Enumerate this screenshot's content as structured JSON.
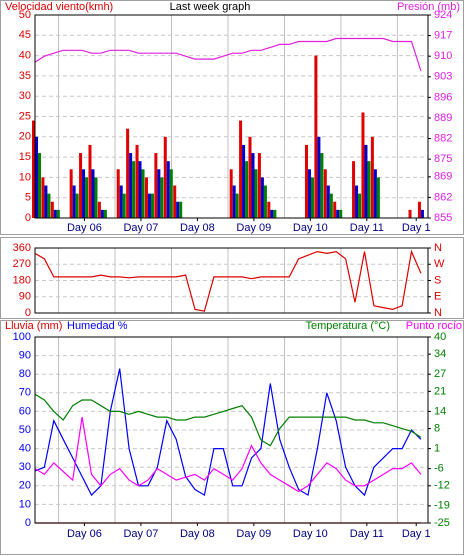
{
  "chart_data": [
    {
      "type": "bar",
      "title": "Last week graph",
      "x": [
        0,
        4,
        8,
        12,
        16,
        20,
        24,
        28,
        32,
        36,
        40,
        44,
        48,
        52,
        56,
        60,
        64,
        68,
        72,
        76,
        80,
        84,
        88,
        92,
        96,
        100,
        104,
        108,
        112,
        116,
        120,
        124,
        128,
        132,
        136,
        140,
        144,
        148,
        152,
        156,
        160,
        164
      ],
      "xlim": [
        0,
        167
      ],
      "xticks": [
        {
          "value": 21,
          "label": "Day 06"
        },
        {
          "value": 45,
          "label": "Day 07"
        },
        {
          "value": 69,
          "label": "Day 08"
        },
        {
          "value": 93,
          "label": "Day 09"
        },
        {
          "value": 117,
          "label": "Day 10"
        },
        {
          "value": 141,
          "label": "Day 11"
        },
        {
          "value": 162,
          "label": "Day 1"
        }
      ],
      "xgrid": [
        10,
        34,
        58,
        82,
        106,
        130,
        154
      ],
      "ylim": [
        0,
        50
      ],
      "yticks": [
        0,
        5,
        10,
        15,
        20,
        25,
        30,
        35,
        40,
        45,
        50
      ],
      "y2lim": [
        855,
        924
      ],
      "y2ticks": [
        855,
        862,
        869,
        875,
        882,
        889,
        896,
        903,
        910,
        917,
        924
      ],
      "grid": true,
      "series": [
        {
          "name": "Velocidad viento(kmh)",
          "color": "#e00000",
          "values": [
            24,
            10,
            4,
            0,
            12,
            16,
            18,
            4,
            0,
            12,
            22,
            18,
            10,
            16,
            20,
            8,
            0,
            0,
            0,
            0,
            0,
            12,
            24,
            20,
            16,
            4,
            0,
            0,
            0,
            18,
            40,
            12,
            4,
            0,
            14,
            26,
            20,
            0,
            0,
            0,
            2,
            4
          ]
        },
        {
          "color": "#0000cc",
          "values": [
            20,
            8,
            2,
            0,
            8,
            12,
            12,
            2,
            0,
            8,
            16,
            14,
            6,
            12,
            14,
            4,
            0,
            0,
            0,
            0,
            0,
            8,
            18,
            16,
            10,
            2,
            0,
            0,
            0,
            12,
            20,
            8,
            2,
            0,
            8,
            18,
            12,
            0,
            0,
            0,
            0,
            2
          ]
        },
        {
          "color": "#008000",
          "values": [
            16,
            6,
            2,
            0,
            6,
            10,
            10,
            2,
            0,
            6,
            14,
            12,
            6,
            10,
            12,
            4,
            0,
            0,
            0,
            0,
            0,
            6,
            14,
            12,
            8,
            2,
            0,
            0,
            0,
            10,
            16,
            6,
            2,
            0,
            6,
            14,
            10,
            0,
            0,
            0,
            0,
            0
          ]
        },
        {
          "name": "Presión (mb)",
          "type": "line",
          "axis": "y2",
          "color": "#e020e0",
          "values": [
            908,
            910,
            911,
            912,
            912,
            912,
            911,
            911,
            912,
            912,
            912,
            911,
            911,
            911,
            911,
            911,
            910,
            909,
            909,
            909,
            910,
            911,
            911,
            912,
            912,
            913,
            914,
            914,
            915,
            915,
            915,
            915,
            916,
            916,
            916,
            916,
            916,
            916,
            915,
            915,
            915,
            905
          ]
        }
      ]
    },
    {
      "type": "line",
      "x": [
        0,
        4,
        8,
        12,
        16,
        20,
        24,
        28,
        32,
        36,
        40,
        44,
        48,
        52,
        56,
        60,
        64,
        68,
        72,
        76,
        80,
        84,
        88,
        92,
        96,
        100,
        104,
        108,
        112,
        116,
        120,
        124,
        128,
        132,
        136,
        140,
        144,
        148,
        152,
        156,
        160,
        164
      ],
      "xlim": [
        0,
        167
      ],
      "xgrid": [
        10,
        34,
        58,
        82,
        106,
        130,
        154
      ],
      "ylim": [
        0,
        360
      ],
      "yticks": [
        0,
        90,
        180,
        270,
        360
      ],
      "y2lim": [
        0,
        360
      ],
      "y2ticks": [
        {
          "value": 0,
          "label": "N"
        },
        {
          "value": 90,
          "label": "E"
        },
        {
          "value": 180,
          "label": "S"
        },
        {
          "value": 270,
          "label": "W"
        },
        {
          "value": 360,
          "label": "N"
        }
      ],
      "grid": true,
      "series": [
        {
          "color": "#dd0000",
          "values": [
            330,
            300,
            200,
            200,
            200,
            200,
            200,
            210,
            200,
            200,
            195,
            200,
            200,
            200,
            200,
            200,
            210,
            20,
            10,
            200,
            200,
            200,
            200,
            190,
            200,
            200,
            200,
            200,
            300,
            320,
            340,
            330,
            340,
            300,
            60,
            340,
            40,
            30,
            20,
            40,
            340,
            220
          ]
        }
      ]
    },
    {
      "type": "line",
      "x": [
        0,
        4,
        8,
        12,
        16,
        20,
        24,
        28,
        32,
        36,
        40,
        44,
        48,
        52,
        56,
        60,
        64,
        68,
        72,
        76,
        80,
        84,
        88,
        92,
        96,
        100,
        104,
        108,
        112,
        116,
        120,
        124,
        128,
        132,
        136,
        140,
        144,
        148,
        152,
        156,
        160,
        164
      ],
      "xlim": [
        0,
        167
      ],
      "xticks": [
        {
          "value": 21,
          "label": "Day 06"
        },
        {
          "value": 45,
          "label": "Day 07"
        },
        {
          "value": 69,
          "label": "Day 08"
        },
        {
          "value": 93,
          "label": "Day 09"
        },
        {
          "value": 117,
          "label": "Day 10"
        },
        {
          "value": 141,
          "label": "Day 11"
        },
        {
          "value": 162,
          "label": "Day 1"
        }
      ],
      "xgrid": [
        10,
        34,
        58,
        82,
        106,
        130,
        154
      ],
      "ylim": [
        0,
        100
      ],
      "yticks": [
        0,
        10,
        20,
        30,
        40,
        50,
        60,
        70,
        80,
        90,
        100
      ],
      "y2lim": [
        -25,
        40
      ],
      "y2ticks": [
        -25,
        -19,
        -12,
        -6,
        1,
        8,
        14,
        21,
        27,
        34,
        40
      ],
      "grid": true,
      "series": [
        {
          "name": "Humedad %",
          "color": "#0000ff",
          "values": [
            28,
            30,
            55,
            45,
            35,
            25,
            15,
            20,
            60,
            83,
            40,
            20,
            20,
            30,
            55,
            45,
            25,
            18,
            15,
            40,
            40,
            20,
            20,
            35,
            40,
            75,
            45,
            30,
            18,
            15,
            40,
            70,
            55,
            30,
            20,
            15,
            30,
            35,
            40,
            40,
            50,
            45
          ]
        },
        {
          "name": "Lluvia (mm)",
          "color": "#e00000",
          "values": [
            0,
            0,
            0,
            0,
            0,
            0,
            0,
            0,
            0,
            0,
            0,
            0,
            0,
            0,
            0,
            0,
            0,
            0,
            0,
            0,
            0,
            0,
            0,
            0,
            0,
            0,
            0,
            0,
            0,
            0,
            0,
            0,
            0,
            0,
            0,
            0,
            0,
            0,
            0,
            0,
            0,
            0
          ]
        },
        {
          "name": "Temperatura (°C)",
          "axis": "y2",
          "color": "#008000",
          "values": [
            20,
            18,
            14,
            11,
            16,
            18,
            18,
            16,
            14,
            14,
            13,
            14,
            13,
            12,
            12,
            11,
            11,
            12,
            12,
            13,
            14,
            15,
            16,
            12,
            4,
            2,
            8,
            12,
            12,
            12,
            12,
            12,
            12,
            12,
            11,
            11,
            10,
            10,
            9,
            8,
            7,
            5
          ]
        },
        {
          "name": "Punto rocío",
          "axis": "y2",
          "color": "#ff00ff",
          "values": [
            -6,
            -8,
            -4,
            -7,
            -10,
            12,
            -8,
            -12,
            -8,
            -6,
            -10,
            -12,
            -10,
            -6,
            -8,
            -10,
            -9,
            -8,
            -10,
            -6,
            -8,
            -10,
            -6,
            2,
            -4,
            -8,
            -10,
            -12,
            -14,
            -12,
            -8,
            -4,
            -6,
            -10,
            -12,
            -12,
            -10,
            -8,
            -6,
            -6,
            -4,
            -8
          ]
        }
      ]
    }
  ]
}
